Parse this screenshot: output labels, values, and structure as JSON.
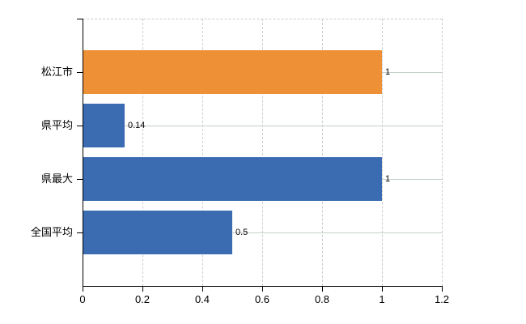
{
  "chart_data": {
    "type": "bar",
    "orientation": "horizontal",
    "title": "",
    "xlabel": "",
    "ylabel": "",
    "categories": [
      "松江市",
      "県平均",
      "県最大",
      "全国平均"
    ],
    "values": [
      1,
      0.14,
      1,
      0.5
    ],
    "value_labels": [
      "1",
      "0.14",
      "1",
      "0.5"
    ],
    "bar_colors": [
      "#ee9036",
      "#3b6cb2",
      "#3b6cb2",
      "#3b6cb2"
    ],
    "xlim": [
      0,
      1.2
    ],
    "x_ticks": [
      0,
      0.2,
      0.4,
      0.6,
      0.8,
      1,
      1.2
    ],
    "x_tick_labels": [
      "0",
      "0.2",
      "0.4",
      "0.6",
      "0.8",
      "1",
      "1.2"
    ],
    "grid": "vertical dashed gridlines at every 0.2; solid horizontal gridline at each category center; dashed top plot border",
    "legend": "none"
  },
  "colors": {
    "background": "#ffffff",
    "accent_orange": "#ee9036",
    "accent_blue": "#3b6cb2",
    "axis": "#000000",
    "grid_vertical": "#cccccc",
    "grid_horizontal": "#c6d0c6",
    "label_text": "#000000"
  }
}
